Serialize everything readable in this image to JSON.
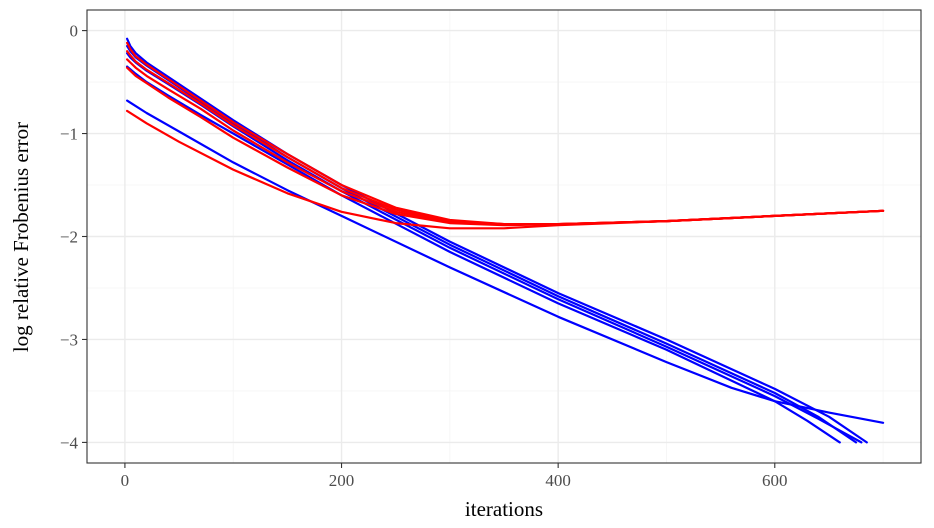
{
  "chart_data": {
    "type": "line",
    "title": "",
    "xlabel": "iterations",
    "ylabel": "log relative Frobenius error",
    "xlim": [
      -35,
      735
    ],
    "ylim": [
      -4.2,
      0.2
    ],
    "x_ticks": [
      0,
      200,
      400,
      600
    ],
    "x_tick_labels": [
      "0",
      "200",
      "400",
      "600"
    ],
    "y_ticks": [
      0,
      -1,
      -2,
      -3,
      -4
    ],
    "y_tick_labels": [
      "0",
      "−1",
      "−2",
      "−3",
      "−4"
    ],
    "grid": true,
    "legend": "none",
    "colors": {
      "blue": "#0000ff",
      "red": "#ff0000"
    },
    "series": [
      {
        "color": "#0000ff",
        "x": [
          2,
          5,
          10,
          20,
          40,
          70,
          100,
          150,
          200,
          300,
          400,
          500,
          600,
          650,
          685
        ],
        "y": [
          -0.08,
          -0.15,
          -0.22,
          -0.31,
          -0.45,
          -0.66,
          -0.87,
          -1.2,
          -1.5,
          -2.05,
          -2.55,
          -3.0,
          -3.48,
          -3.75,
          -4.0
        ]
      },
      {
        "color": "#0000ff",
        "x": [
          2,
          5,
          10,
          20,
          40,
          70,
          100,
          150,
          200,
          300,
          400,
          500,
          600,
          640,
          675
        ],
        "y": [
          -0.15,
          -0.2,
          -0.26,
          -0.34,
          -0.48,
          -0.69,
          -0.9,
          -1.23,
          -1.53,
          -2.08,
          -2.58,
          -3.04,
          -3.52,
          -3.75,
          -4.0
        ]
      },
      {
        "color": "#0000ff",
        "x": [
          2,
          5,
          10,
          20,
          40,
          70,
          100,
          150,
          200,
          300,
          400,
          500,
          600,
          640,
          680
        ],
        "y": [
          -0.22,
          -0.26,
          -0.31,
          -0.39,
          -0.52,
          -0.72,
          -0.93,
          -1.26,
          -1.56,
          -2.11,
          -2.61,
          -3.07,
          -3.55,
          -3.77,
          -4.0
        ]
      },
      {
        "color": "#0000ff",
        "x": [
          2,
          10,
          20,
          40,
          70,
          100,
          150,
          200,
          300,
          400,
          500,
          600,
          630,
          660
        ],
        "y": [
          -0.35,
          -0.42,
          -0.5,
          -0.63,
          -0.82,
          -1.0,
          -1.3,
          -1.6,
          -2.15,
          -2.65,
          -3.1,
          -3.6,
          -3.79,
          -4.0
        ]
      },
      {
        "color": "#0000ff",
        "x": [
          2,
          20,
          50,
          100,
          150,
          200,
          300,
          400,
          500,
          560,
          600,
          650,
          700
        ],
        "y": [
          -0.68,
          -0.8,
          -0.98,
          -1.28,
          -1.55,
          -1.8,
          -2.3,
          -2.78,
          -3.22,
          -3.47,
          -3.6,
          -3.71,
          -3.81
        ]
      },
      {
        "color": "#ff0000",
        "x": [
          2,
          5,
          10,
          20,
          40,
          70,
          100,
          150,
          200,
          250,
          300,
          350,
          400,
          500,
          600,
          700
        ],
        "y": [
          -0.12,
          -0.18,
          -0.25,
          -0.33,
          -0.47,
          -0.68,
          -0.89,
          -1.2,
          -1.5,
          -1.72,
          -1.84,
          -1.88,
          -1.88,
          -1.85,
          -1.8,
          -1.75
        ]
      },
      {
        "color": "#ff0000",
        "x": [
          2,
          5,
          10,
          20,
          40,
          70,
          100,
          150,
          200,
          250,
          300,
          350,
          400,
          500,
          600,
          700
        ],
        "y": [
          -0.2,
          -0.24,
          -0.3,
          -0.38,
          -0.51,
          -0.71,
          -0.92,
          -1.23,
          -1.53,
          -1.74,
          -1.85,
          -1.88,
          -1.88,
          -1.85,
          -1.8,
          -1.75
        ]
      },
      {
        "color": "#ff0000",
        "x": [
          2,
          5,
          10,
          20,
          40,
          70,
          100,
          150,
          200,
          250,
          300,
          350,
          400,
          500,
          600,
          700
        ],
        "y": [
          -0.28,
          -0.31,
          -0.36,
          -0.44,
          -0.57,
          -0.76,
          -0.97,
          -1.28,
          -1.56,
          -1.76,
          -1.86,
          -1.88,
          -1.88,
          -1.85,
          -1.8,
          -1.75
        ]
      },
      {
        "color": "#ff0000",
        "x": [
          2,
          10,
          20,
          40,
          70,
          100,
          150,
          200,
          250,
          300,
          350,
          400,
          500,
          600,
          700
        ],
        "y": [
          -0.36,
          -0.44,
          -0.51,
          -0.65,
          -0.84,
          -1.04,
          -1.33,
          -1.6,
          -1.78,
          -1.87,
          -1.89,
          -1.88,
          -1.85,
          -1.8,
          -1.75
        ]
      },
      {
        "color": "#ff0000",
        "x": [
          2,
          20,
          50,
          100,
          150,
          200,
          250,
          300,
          350,
          400,
          500,
          600,
          700
        ],
        "y": [
          -0.78,
          -0.9,
          -1.08,
          -1.35,
          -1.58,
          -1.76,
          -1.87,
          -1.92,
          -1.92,
          -1.89,
          -1.85,
          -1.8,
          -1.75
        ]
      }
    ]
  }
}
